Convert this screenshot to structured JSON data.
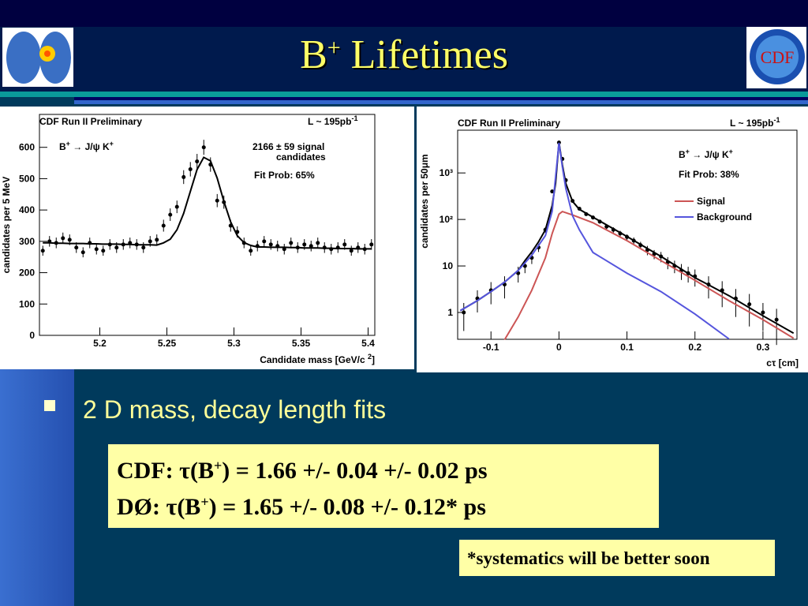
{
  "slide": {
    "title": [
      "B",
      "+",
      " Lifetimes"
    ],
    "logo_right": "CDF",
    "bullet": "2 D mass, decay length fits",
    "results": [
      [
        "CDF: τ(B",
        "+",
        ") = 1.66 +/- 0.04 +/- 0.02 ps"
      ],
      [
        "DØ:   τ(B",
        "+",
        ") = 1.65 +/- 0.08 +/- 0.12* ps"
      ]
    ],
    "footnote": "*systematics will be better soon"
  },
  "chart_data": [
    {
      "type": "scatter",
      "title": "CDF Run II Preliminary",
      "luminosity": [
        "L ~ 195pb",
        "-1"
      ],
      "annotations": [
        [
          "B",
          "+",
          " → J/ψ K",
          "+"
        ],
        [
          "2166 ± 59 signal"
        ],
        [
          "candidates"
        ],
        [
          "Fit Prob:   65%"
        ]
      ],
      "x_label": [
        "Candidate mass [GeV/c ",
        "2",
        "]"
      ],
      "y_label": "candidates per 5 MeV",
      "xlim": [
        5.155,
        5.405
      ],
      "ylim": [
        0,
        705
      ],
      "xticks": [
        5.2,
        5.25,
        5.3,
        5.35,
        5.4
      ],
      "yticks": [
        0,
        100,
        200,
        300,
        400,
        500,
        600
      ],
      "x": [
        5.1575,
        5.1625,
        5.1675,
        5.1725,
        5.1775,
        5.1825,
        5.1875,
        5.1925,
        5.1975,
        5.2025,
        5.2075,
        5.2125,
        5.2175,
        5.2225,
        5.2275,
        5.2325,
        5.2375,
        5.2425,
        5.2475,
        5.2525,
        5.2575,
        5.2625,
        5.2675,
        5.2725,
        5.2775,
        5.2825,
        5.2875,
        5.2925,
        5.2975,
        5.3025,
        5.3075,
        5.3125,
        5.3175,
        5.3225,
        5.3275,
        5.3325,
        5.3375,
        5.3425,
        5.3475,
        5.3525,
        5.3575,
        5.3625,
        5.3675,
        5.3725,
        5.3775,
        5.3825,
        5.3875,
        5.3925,
        5.3975,
        5.4025
      ],
      "series": [
        {
          "color": "#000000",
          "values": [
            270,
            300,
            295,
            310,
            305,
            280,
            265,
            295,
            275,
            270,
            290,
            280,
            290,
            295,
            290,
            280,
            300,
            305,
            350,
            385,
            410,
            505,
            530,
            555,
            600,
            545,
            430,
            425,
            350,
            330,
            295,
            270,
            285,
            300,
            290,
            285,
            275,
            295,
            280,
            290,
            285,
            295,
            280,
            275,
            280,
            290,
            270,
            280,
            275,
            290
          ],
          "errors": [
            16,
            17,
            17,
            18,
            17,
            17,
            16,
            17,
            17,
            16,
            17,
            17,
            17,
            17,
            17,
            17,
            17,
            17,
            19,
            20,
            20,
            22,
            23,
            24,
            24,
            23,
            21,
            21,
            19,
            18,
            17,
            16,
            17,
            17,
            17,
            17,
            17,
            17,
            17,
            17,
            17,
            17,
            17,
            17,
            17,
            17,
            16,
            17,
            17,
            17
          ]
        },
        {
          "color": "#000000",
          "values": [
            295,
            295,
            294,
            294,
            293,
            293,
            293,
            292,
            292,
            291,
            291,
            291,
            290,
            290,
            289,
            289,
            289,
            288,
            295,
            307,
            337,
            389,
            459,
            529,
            568,
            557,
            502,
            427,
            362,
            318,
            296,
            287,
            282,
            282,
            281,
            281,
            281,
            280,
            280,
            279,
            279,
            279,
            278,
            278,
            277,
            277,
            277,
            276,
            276,
            276
          ]
        }
      ]
    },
    {
      "type": "scatter",
      "title": "CDF Run II Preliminary",
      "luminosity": [
        "L ~ 195pb",
        "-1"
      ],
      "annotations": [
        [
          "B",
          "+",
          " → J/ψ K",
          "+"
        ],
        [
          "Fit Prob: 38%"
        ]
      ],
      "x_label": [
        "cτ [cm]"
      ],
      "y_label": "candidates per 50μm",
      "log_y": true,
      "legend": "upper right",
      "xlim": [
        -0.149,
        0.35
      ],
      "ylim": [
        0.265,
        8300
      ],
      "xticks": [
        -0.1,
        0,
        0.1,
        0.2,
        0.3
      ],
      "yticks": [
        1,
        10,
        {
          "value": 100,
          "label": "10²"
        },
        {
          "value": 1000,
          "label": "10³"
        }
      ],
      "series": [
        {
          "color": "#000000",
          "x": [
            -0.14,
            -0.12,
            -0.1,
            -0.08,
            -0.06,
            -0.05,
            -0.04,
            -0.03,
            -0.02,
            -0.01,
            0,
            0.005,
            0.01,
            0.02,
            0.03,
            0.04,
            0.05,
            0.06,
            0.07,
            0.08,
            0.09,
            0.1,
            0.11,
            0.12,
            0.13,
            0.14,
            0.15,
            0.16,
            0.17,
            0.18,
            0.19,
            0.2,
            0.22,
            0.24,
            0.26,
            0.28,
            0.3,
            0.32
          ],
          "values": [
            1,
            2,
            3,
            4,
            7,
            10,
            15,
            25,
            60,
            400,
            4500,
            2000,
            700,
            250,
            170,
            130,
            110,
            90,
            70,
            60,
            50,
            42,
            35,
            28,
            22,
            18,
            16,
            12,
            10,
            8,
            7,
            6,
            4,
            3,
            2,
            1.5,
            1,
            0.7
          ],
          "errors": [
            0.6,
            1,
            1.5,
            2,
            2.6,
            3,
            4,
            5,
            8,
            20,
            67,
            45,
            26,
            16,
            13,
            11,
            10,
            9,
            8,
            8,
            7,
            6,
            6,
            5,
            5,
            4,
            4,
            3.5,
            3,
            3,
            2.6,
            2.4,
            2,
            1.7,
            1.2,
            1,
            0.6,
            0.5
          ]
        },
        {
          "color": "#000000",
          "x": [
            -0.145,
            -0.12,
            -0.1,
            -0.08,
            -0.06,
            -0.05,
            -0.04,
            -0.03,
            -0.02,
            -0.01,
            -0.005,
            0,
            0.005,
            0.01,
            0.02,
            0.03,
            0.05,
            0.1,
            0.15,
            0.2,
            0.25,
            0.3,
            0.345
          ],
          "values": [
            1.1,
            1.8,
            2.8,
            4.5,
            8,
            13,
            20,
            33,
            60,
            200,
            600,
            4600,
            1500,
            600,
            245,
            165,
            112,
            43,
            16,
            5.6,
            2.3,
            0.85,
            0.36
          ]
        },
        {
          "name": "Signal",
          "color": "#cc5555",
          "x": [
            -0.08,
            -0.06,
            -0.04,
            -0.02,
            -0.01,
            0,
            0.005,
            0.02,
            0.05,
            0.1,
            0.15,
            0.2,
            0.25,
            0.3,
            0.345
          ],
          "values": [
            0.26,
            0.8,
            3,
            15,
            50,
            130,
            148,
            125,
            85,
            35,
            13,
            4.9,
            1.8,
            0.7,
            0.28
          ]
        },
        {
          "name": "Background",
          "color": "#5555dd",
          "x": [
            -0.145,
            -0.12,
            -0.1,
            -0.08,
            -0.06,
            -0.04,
            -0.02,
            -0.01,
            0,
            0.005,
            0.01,
            0.02,
            0.03,
            0.05,
            0.1,
            0.15,
            0.2,
            0.25
          ],
          "values": [
            1.1,
            1.8,
            2.8,
            4.5,
            8,
            17,
            45,
            150,
            4450,
            1350,
            470,
            120,
            60,
            19.5,
            7,
            2.8,
            0.93,
            0.27
          ]
        }
      ]
    }
  ]
}
